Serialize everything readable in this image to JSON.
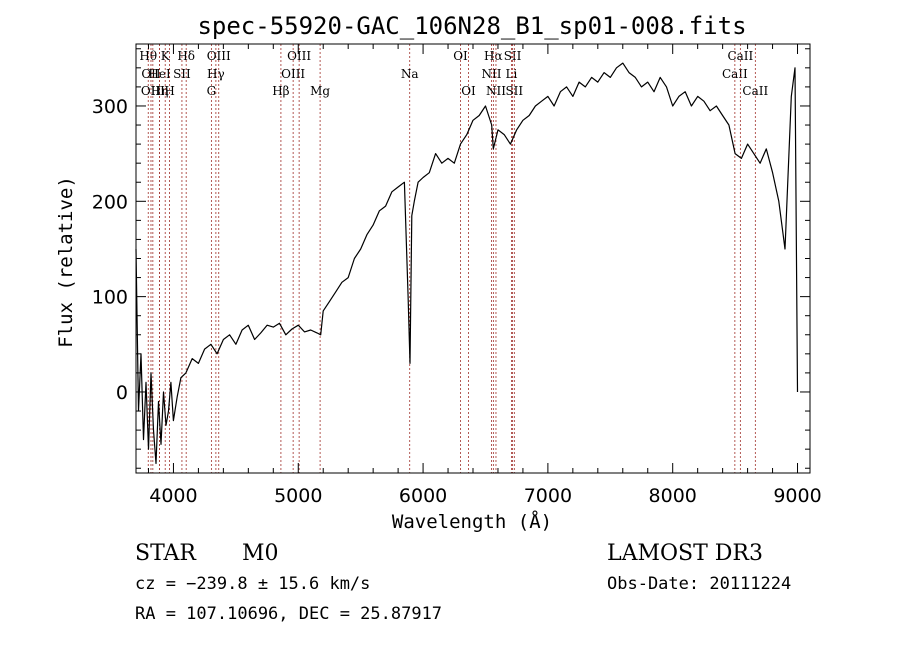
{
  "chart_data": {
    "type": "line",
    "title": "spec-55920-GAC_106N28_B1_sp01-008.fits",
    "xlabel": "Wavelength (Å)",
    "ylabel": "Flux (relative)",
    "xlim": [
      3700,
      9100
    ],
    "ylim": [
      -85,
      365
    ],
    "x_ticks": [
      4000,
      5000,
      6000,
      7000,
      8000,
      9000
    ],
    "y_ticks": [
      0,
      100,
      200,
      300
    ],
    "series": [
      {
        "name": "flux",
        "x": [
          3700,
          3720,
          3740,
          3760,
          3780,
          3800,
          3820,
          3840,
          3860,
          3880,
          3900,
          3920,
          3940,
          3960,
          3980,
          4000,
          4030,
          4060,
          4100,
          4150,
          4200,
          4250,
          4300,
          4350,
          4400,
          4450,
          4500,
          4550,
          4600,
          4650,
          4700,
          4750,
          4800,
          4850,
          4900,
          4950,
          5000,
          5050,
          5100,
          5150,
          5180,
          5200,
          5250,
          5300,
          5350,
          5400,
          5450,
          5500,
          5550,
          5600,
          5650,
          5700,
          5750,
          5800,
          5850,
          5880,
          5895,
          5910,
          5930,
          5960,
          6000,
          6050,
          6100,
          6150,
          6200,
          6250,
          6300,
          6350,
          6400,
          6450,
          6500,
          6550,
          6563,
          6600,
          6650,
          6700,
          6750,
          6800,
          6850,
          6900,
          6950,
          7000,
          7050,
          7100,
          7150,
          7200,
          7250,
          7300,
          7350,
          7400,
          7450,
          7500,
          7550,
          7600,
          7650,
          7700,
          7750,
          7800,
          7850,
          7900,
          7950,
          8000,
          8050,
          8100,
          8150,
          8200,
          8250,
          8300,
          8350,
          8400,
          8450,
          8500,
          8550,
          8600,
          8650,
          8700,
          8750,
          8800,
          8850,
          8900,
          8950,
          8980,
          9000
        ],
        "y": [
          150,
          -20,
          40,
          -50,
          10,
          -60,
          20,
          -40,
          -75,
          -10,
          -55,
          0,
          -35,
          -20,
          10,
          -30,
          -5,
          15,
          20,
          35,
          30,
          45,
          50,
          40,
          55,
          60,
          50,
          65,
          70,
          55,
          62,
          70,
          68,
          72,
          60,
          66,
          70,
          63,
          65,
          62,
          60,
          85,
          95,
          105,
          115,
          120,
          140,
          150,
          165,
          175,
          190,
          195,
          210,
          215,
          220,
          100,
          30,
          185,
          200,
          220,
          225,
          230,
          250,
          240,
          245,
          240,
          260,
          270,
          285,
          290,
          300,
          280,
          255,
          275,
          270,
          260,
          275,
          285,
          290,
          300,
          305,
          310,
          300,
          315,
          320,
          310,
          325,
          320,
          330,
          325,
          335,
          330,
          340,
          345,
          335,
          330,
          320,
          325,
          315,
          330,
          320,
          300,
          310,
          315,
          300,
          310,
          305,
          295,
          300,
          290,
          280,
          250,
          245,
          260,
          250,
          240,
          255,
          230,
          200,
          150,
          310,
          340,
          0
        ]
      }
    ],
    "line_ids": [
      {
        "wl": 3798,
        "label": "Hθ",
        "row": 1
      },
      {
        "wl": 3820,
        "label": "OII",
        "row": 2
      },
      {
        "wl": 3835,
        "label": "OIII",
        "row": 3
      },
      {
        "wl": 3889,
        "label": "HeI",
        "row": 2
      },
      {
        "wl": 3889,
        "label": "Hη",
        "row": 3
      },
      {
        "wl": 3934,
        "label": "K",
        "row": 1
      },
      {
        "wl": 3969,
        "label": "H",
        "row": 3
      },
      {
        "wl": 4068,
        "label": "SII",
        "row": 2
      },
      {
        "wl": 4102,
        "label": "Hδ",
        "row": 1
      },
      {
        "wl": 4304,
        "label": "G",
        "row": 3
      },
      {
        "wl": 4340,
        "label": "Hγ",
        "row": 2
      },
      {
        "wl": 4363,
        "label": "OIII",
        "row": 1
      },
      {
        "wl": 4861,
        "label": "Hβ",
        "row": 3
      },
      {
        "wl": 4959,
        "label": "OIII",
        "row": 2
      },
      {
        "wl": 5007,
        "label": "OIII",
        "row": 1
      },
      {
        "wl": 5175,
        "label": "Mg",
        "row": 3
      },
      {
        "wl": 5893,
        "label": "Na",
        "row": 2
      },
      {
        "wl": 6300,
        "label": "OI",
        "row": 1
      },
      {
        "wl": 6364,
        "label": "OI",
        "row": 3
      },
      {
        "wl": 6548,
        "label": "NII",
        "row": 2
      },
      {
        "wl": 6563,
        "label": "Hα",
        "row": 1
      },
      {
        "wl": 6584,
        "label": "NII",
        "row": 3
      },
      {
        "wl": 6708,
        "label": "Li",
        "row": 2
      },
      {
        "wl": 6717,
        "label": "SII",
        "row": 1
      },
      {
        "wl": 6731,
        "label": "SII",
        "row": 3
      },
      {
        "wl": 8498,
        "label": "CaII",
        "row": 2
      },
      {
        "wl": 8542,
        "label": "CaII",
        "row": 1
      },
      {
        "wl": 8662,
        "label": "CaII",
        "row": 3
      }
    ]
  },
  "footer": {
    "class": "STAR",
    "subclass": "M0",
    "survey": "LAMOST DR3",
    "cz": "cz = −239.8 ± 15.6 km/s",
    "obs_date": "Obs-Date: 20111224",
    "coords": "RA = 107.10696, DEC =  25.87917"
  }
}
